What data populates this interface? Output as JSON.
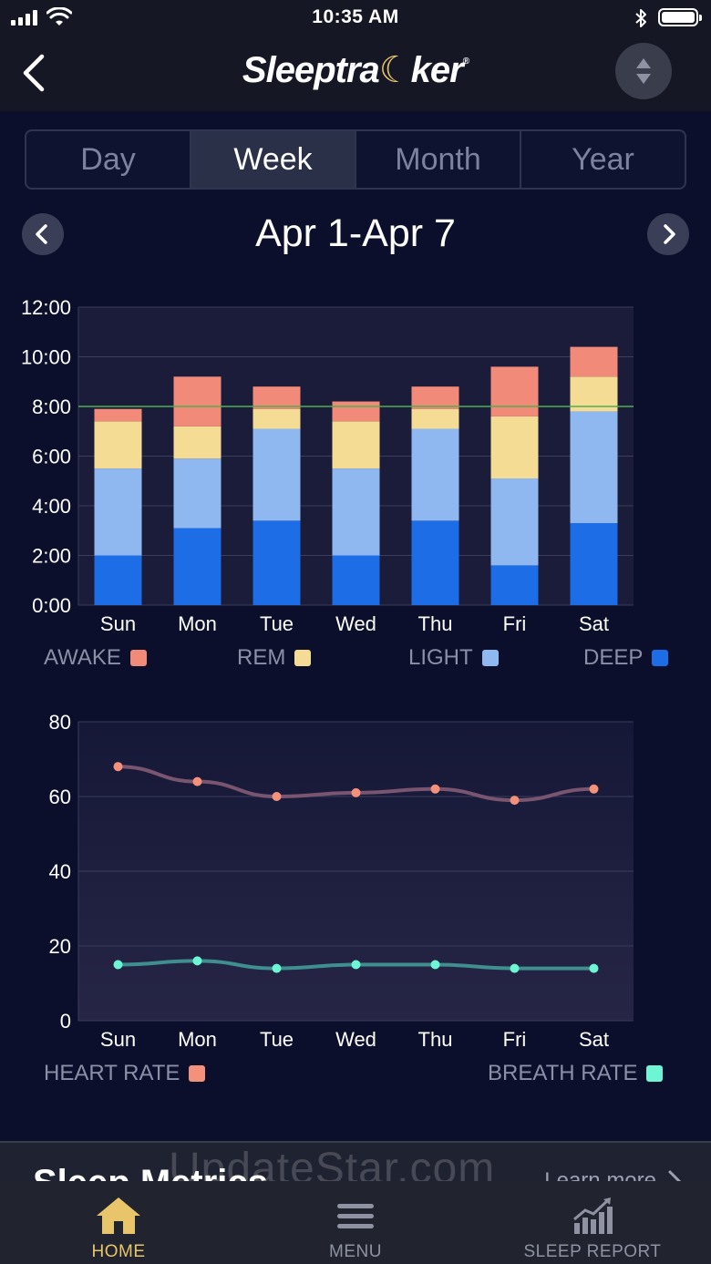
{
  "status_bar": {
    "time": "10:35 AM"
  },
  "nav": {
    "brand_prefix": "Sleeptra",
    "brand_suffix": "ker",
    "brand_mark": "®"
  },
  "period_tabs": [
    {
      "label": "Day",
      "active": false
    },
    {
      "label": "Week",
      "active": true
    },
    {
      "label": "Month",
      "active": false
    },
    {
      "label": "Year",
      "active": false
    }
  ],
  "date_range": "Apr 1-Apr 7",
  "sleep_legend": [
    {
      "label": "AWAKE",
      "color": "#f28a7a"
    },
    {
      "label": "REM",
      "color": "#f5dc95"
    },
    {
      "label": "LIGHT",
      "color": "#8fb8f0"
    },
    {
      "label": "DEEP",
      "color": "#1c6de6"
    }
  ],
  "rate_legend": [
    {
      "label": "HEART RATE",
      "color": "#f4917a"
    },
    {
      "label": "BREATH RATE",
      "color": "#6ef5d4"
    }
  ],
  "metrics": {
    "title": "Sleep Metrics",
    "learn_more": "Learn more"
  },
  "watermark": "UpdateStar.com",
  "tab_bar": [
    {
      "label": "HOME",
      "icon": "home-icon",
      "active": true
    },
    {
      "label": "MENU",
      "icon": "menu-icon",
      "active": false
    },
    {
      "label": "SLEEP REPORT",
      "icon": "chart-icon",
      "active": false
    }
  ],
  "chart_data": [
    {
      "type": "bar",
      "stacked": true,
      "categories": [
        "Sun",
        "Mon",
        "Tue",
        "Wed",
        "Thu",
        "Fri",
        "Sat"
      ],
      "y_tick_labels": [
        "0:00",
        "2:00",
        "4:00",
        "6:00",
        "8:00",
        "10:00",
        "12:00"
      ],
      "ylim": [
        0,
        12
      ],
      "grid": true,
      "goal_line": 8,
      "goal_color": "#4caf50",
      "series": [
        {
          "name": "DEEP",
          "color": "#1c6de6",
          "values": [
            2.0,
            3.1,
            3.4,
            2.0,
            3.4,
            1.6,
            3.3
          ]
        },
        {
          "name": "LIGHT",
          "color": "#8fb8f0",
          "values": [
            3.5,
            2.8,
            3.7,
            3.5,
            3.7,
            3.5,
            4.5
          ]
        },
        {
          "name": "REM",
          "color": "#f5dc95",
          "values": [
            1.9,
            1.3,
            0.8,
            1.9,
            0.8,
            2.5,
            1.4
          ]
        },
        {
          "name": "AWAKE",
          "color": "#f28a7a",
          "values": [
            0.5,
            2.0,
            0.9,
            0.8,
            0.9,
            2.0,
            1.2
          ]
        }
      ]
    },
    {
      "type": "line",
      "categories": [
        "Sun",
        "Mon",
        "Tue",
        "Wed",
        "Thu",
        "Fri",
        "Sat"
      ],
      "y_ticks": [
        0,
        20,
        40,
        60,
        80
      ],
      "ylim": [
        0,
        80
      ],
      "grid": true,
      "series": [
        {
          "name": "HEART RATE",
          "color": "#f4917a",
          "line_color": "#7a5570",
          "values": [
            68,
            64,
            60,
            61,
            62,
            59,
            62
          ]
        },
        {
          "name": "BREATH RATE",
          "color": "#6ef5d4",
          "line_color": "#3f8f8e",
          "values": [
            15,
            16,
            14,
            15,
            15,
            14,
            14
          ]
        }
      ]
    }
  ]
}
